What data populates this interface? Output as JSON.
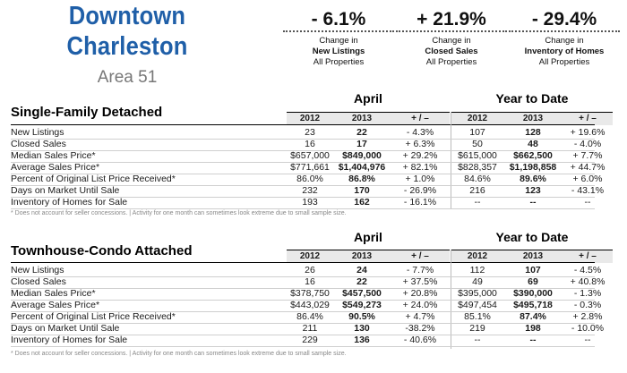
{
  "area": {
    "title_line1": "Downtown",
    "title_line2": "Charleston",
    "subtitle": "Area 51"
  },
  "kpis": [
    {
      "value": "- 6.1%",
      "line1": "Change in",
      "line2": "New Listings",
      "line3": "All Properties"
    },
    {
      "value": "+ 21.9%",
      "line1": "Change in",
      "line2": "Closed Sales",
      "line3": "All Properties"
    },
    {
      "value": "- 29.4%",
      "line1": "Change in",
      "line2": "Inventory of Homes",
      "line3": "All Properties"
    }
  ],
  "periods": {
    "left": "April",
    "right": "Year to Date"
  },
  "headers": [
    "2012",
    "2013",
    "+ / –",
    "2012",
    "2013",
    "+ / –"
  ],
  "footnote": "* Does not account for seller concessions.  |  Activity for one month can sometimes look extreme due to small sample size.",
  "sections": [
    {
      "title": "Single-Family Detached",
      "rows": [
        {
          "label": "New Listings",
          "cells": [
            "23",
            "22",
            "- 4.3%",
            "107",
            "128",
            "+ 19.6%"
          ]
        },
        {
          "label": "Closed Sales",
          "cells": [
            "16",
            "17",
            "+ 6.3%",
            "50",
            "48",
            "- 4.0%"
          ]
        },
        {
          "label": "Median Sales Price*",
          "cells": [
            "$657,000",
            "$849,000",
            "+ 29.2%",
            "$615,000",
            "$662,500",
            "+ 7.7%"
          ]
        },
        {
          "label": "Average Sales Price*",
          "cells": [
            "$771,661",
            "$1,404,976",
            "+ 82.1%",
            "$828,357",
            "$1,198,858",
            "+ 44.7%"
          ]
        },
        {
          "label": "Percent of Original List Price Received*",
          "cells": [
            "86.0%",
            "86.8%",
            "+ 1.0%",
            "84.6%",
            "89.6%",
            "+ 6.0%"
          ]
        },
        {
          "label": "Days on Market Until Sale",
          "cells": [
            "232",
            "170",
            "- 26.9%",
            "216",
            "123",
            "- 43.1%"
          ]
        },
        {
          "label": "Inventory of Homes for Sale",
          "cells": [
            "193",
            "162",
            "- 16.1%",
            "--",
            "--",
            "--"
          ]
        }
      ]
    },
    {
      "title": "Townhouse-Condo Attached",
      "rows": [
        {
          "label": "New Listings",
          "cells": [
            "26",
            "24",
            "- 7.7%",
            "112",
            "107",
            "- 4.5%"
          ]
        },
        {
          "label": "Closed Sales",
          "cells": [
            "16",
            "22",
            "+ 37.5%",
            "49",
            "69",
            "+ 40.8%"
          ]
        },
        {
          "label": "Median Sales Price*",
          "cells": [
            "$378,750",
            "$457,500",
            "+ 20.8%",
            "$395,000",
            "$390,000",
            "- 1.3%"
          ]
        },
        {
          "label": "Average Sales Price*",
          "cells": [
            "$443,029",
            "$549,273",
            "+ 24.0%",
            "$497,454",
            "$495,718",
            "- 0.3%"
          ]
        },
        {
          "label": "Percent of Original List Price Received*",
          "cells": [
            "86.4%",
            "90.5%",
            "+ 4.7%",
            "85.1%",
            "87.4%",
            "+ 2.8%"
          ]
        },
        {
          "label": "Days on Market Until Sale",
          "cells": [
            "211",
            "130",
            "-38.2%",
            "219",
            "198",
            "- 10.0%"
          ]
        },
        {
          "label": "Inventory of Homes for Sale",
          "cells": [
            "229",
            "136",
            "- 40.6%",
            "--",
            "--",
            "--"
          ]
        }
      ]
    }
  ]
}
